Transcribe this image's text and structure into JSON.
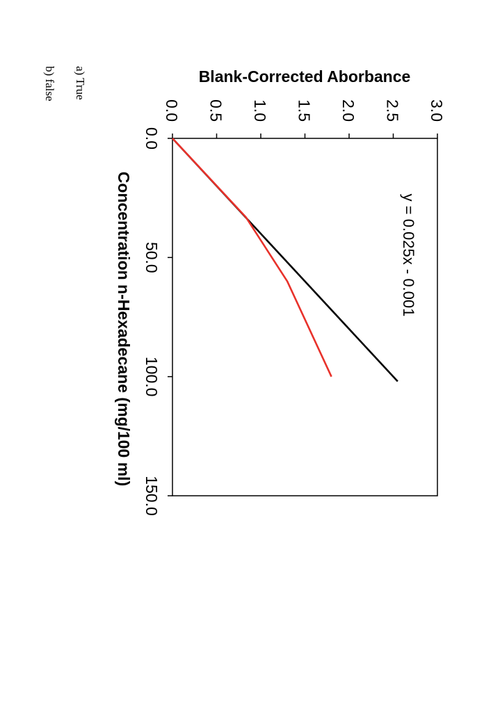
{
  "chart_data": {
    "type": "line",
    "xlabel": "Concentration n-Hexadecane (mg/100 ml)",
    "ylabel": "Blank-Corrected Aborbance",
    "xlim": [
      0,
      150
    ],
    "ylim": [
      0,
      3
    ],
    "x_ticks": [
      "0.0",
      "50.0",
      "100.0",
      "150.0"
    ],
    "y_ticks": [
      "0.0",
      "0.5",
      "1.0",
      "1.5",
      "2.0",
      "2.5",
      "3.0"
    ],
    "grid": false,
    "series": [
      {
        "color": "#000000",
        "points": [
          [
            0,
            0
          ],
          [
            102,
            2.55
          ]
        ]
      },
      {
        "color": "#e8322b",
        "points": [
          [
            0,
            0
          ],
          [
            33,
            0.83
          ],
          [
            60,
            1.3
          ],
          [
            100,
            1.8
          ]
        ]
      }
    ],
    "annotations": [
      {
        "text": "y = 0.025x - 0.001",
        "x": 22,
        "y": 2.65
      }
    ]
  },
  "options": {
    "a": "a) True",
    "b": "b) false"
  }
}
